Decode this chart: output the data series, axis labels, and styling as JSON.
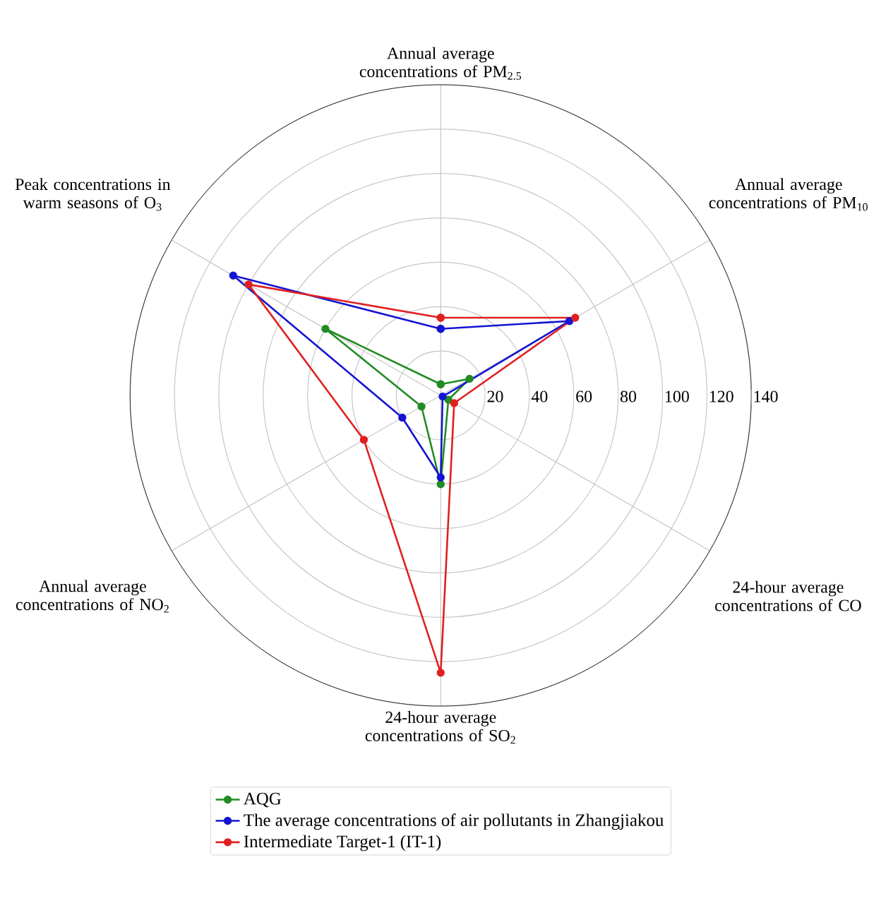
{
  "chart_data": {
    "type": "radar",
    "categories": [
      "Annual average concentrations of PM$_{2.5}$",
      "Annual average concentrations of PM$_{10}$",
      "24-hour average concentrations of CO",
      "24-hour average concentrations of SO$_{2}$",
      "Annual average concentrations of NO$_{2}$",
      "Peak concentrations in warm seasons of O$_{3}$"
    ],
    "series": [
      {
        "name": "AQG",
        "color": "#228b22",
        "values": [
          5,
          15,
          4,
          40,
          10,
          60
        ]
      },
      {
        "name": "The average concentrations of air pollutants in Zhangjiakou",
        "color": "#1414d2",
        "values": [
          30,
          67,
          1,
          37,
          20,
          108
        ]
      },
      {
        "name": "Intermediate Target-1 (IT-1)",
        "color": "#e02020",
        "values": [
          35,
          70,
          7,
          125,
          40,
          100
        ]
      }
    ],
    "ylim": [
      0,
      140
    ],
    "yticks": [
      20,
      40,
      60,
      80,
      100,
      120,
      140
    ],
    "grid": true,
    "legend": "bottom",
    "marker": "circle",
    "line_style": "solid"
  }
}
